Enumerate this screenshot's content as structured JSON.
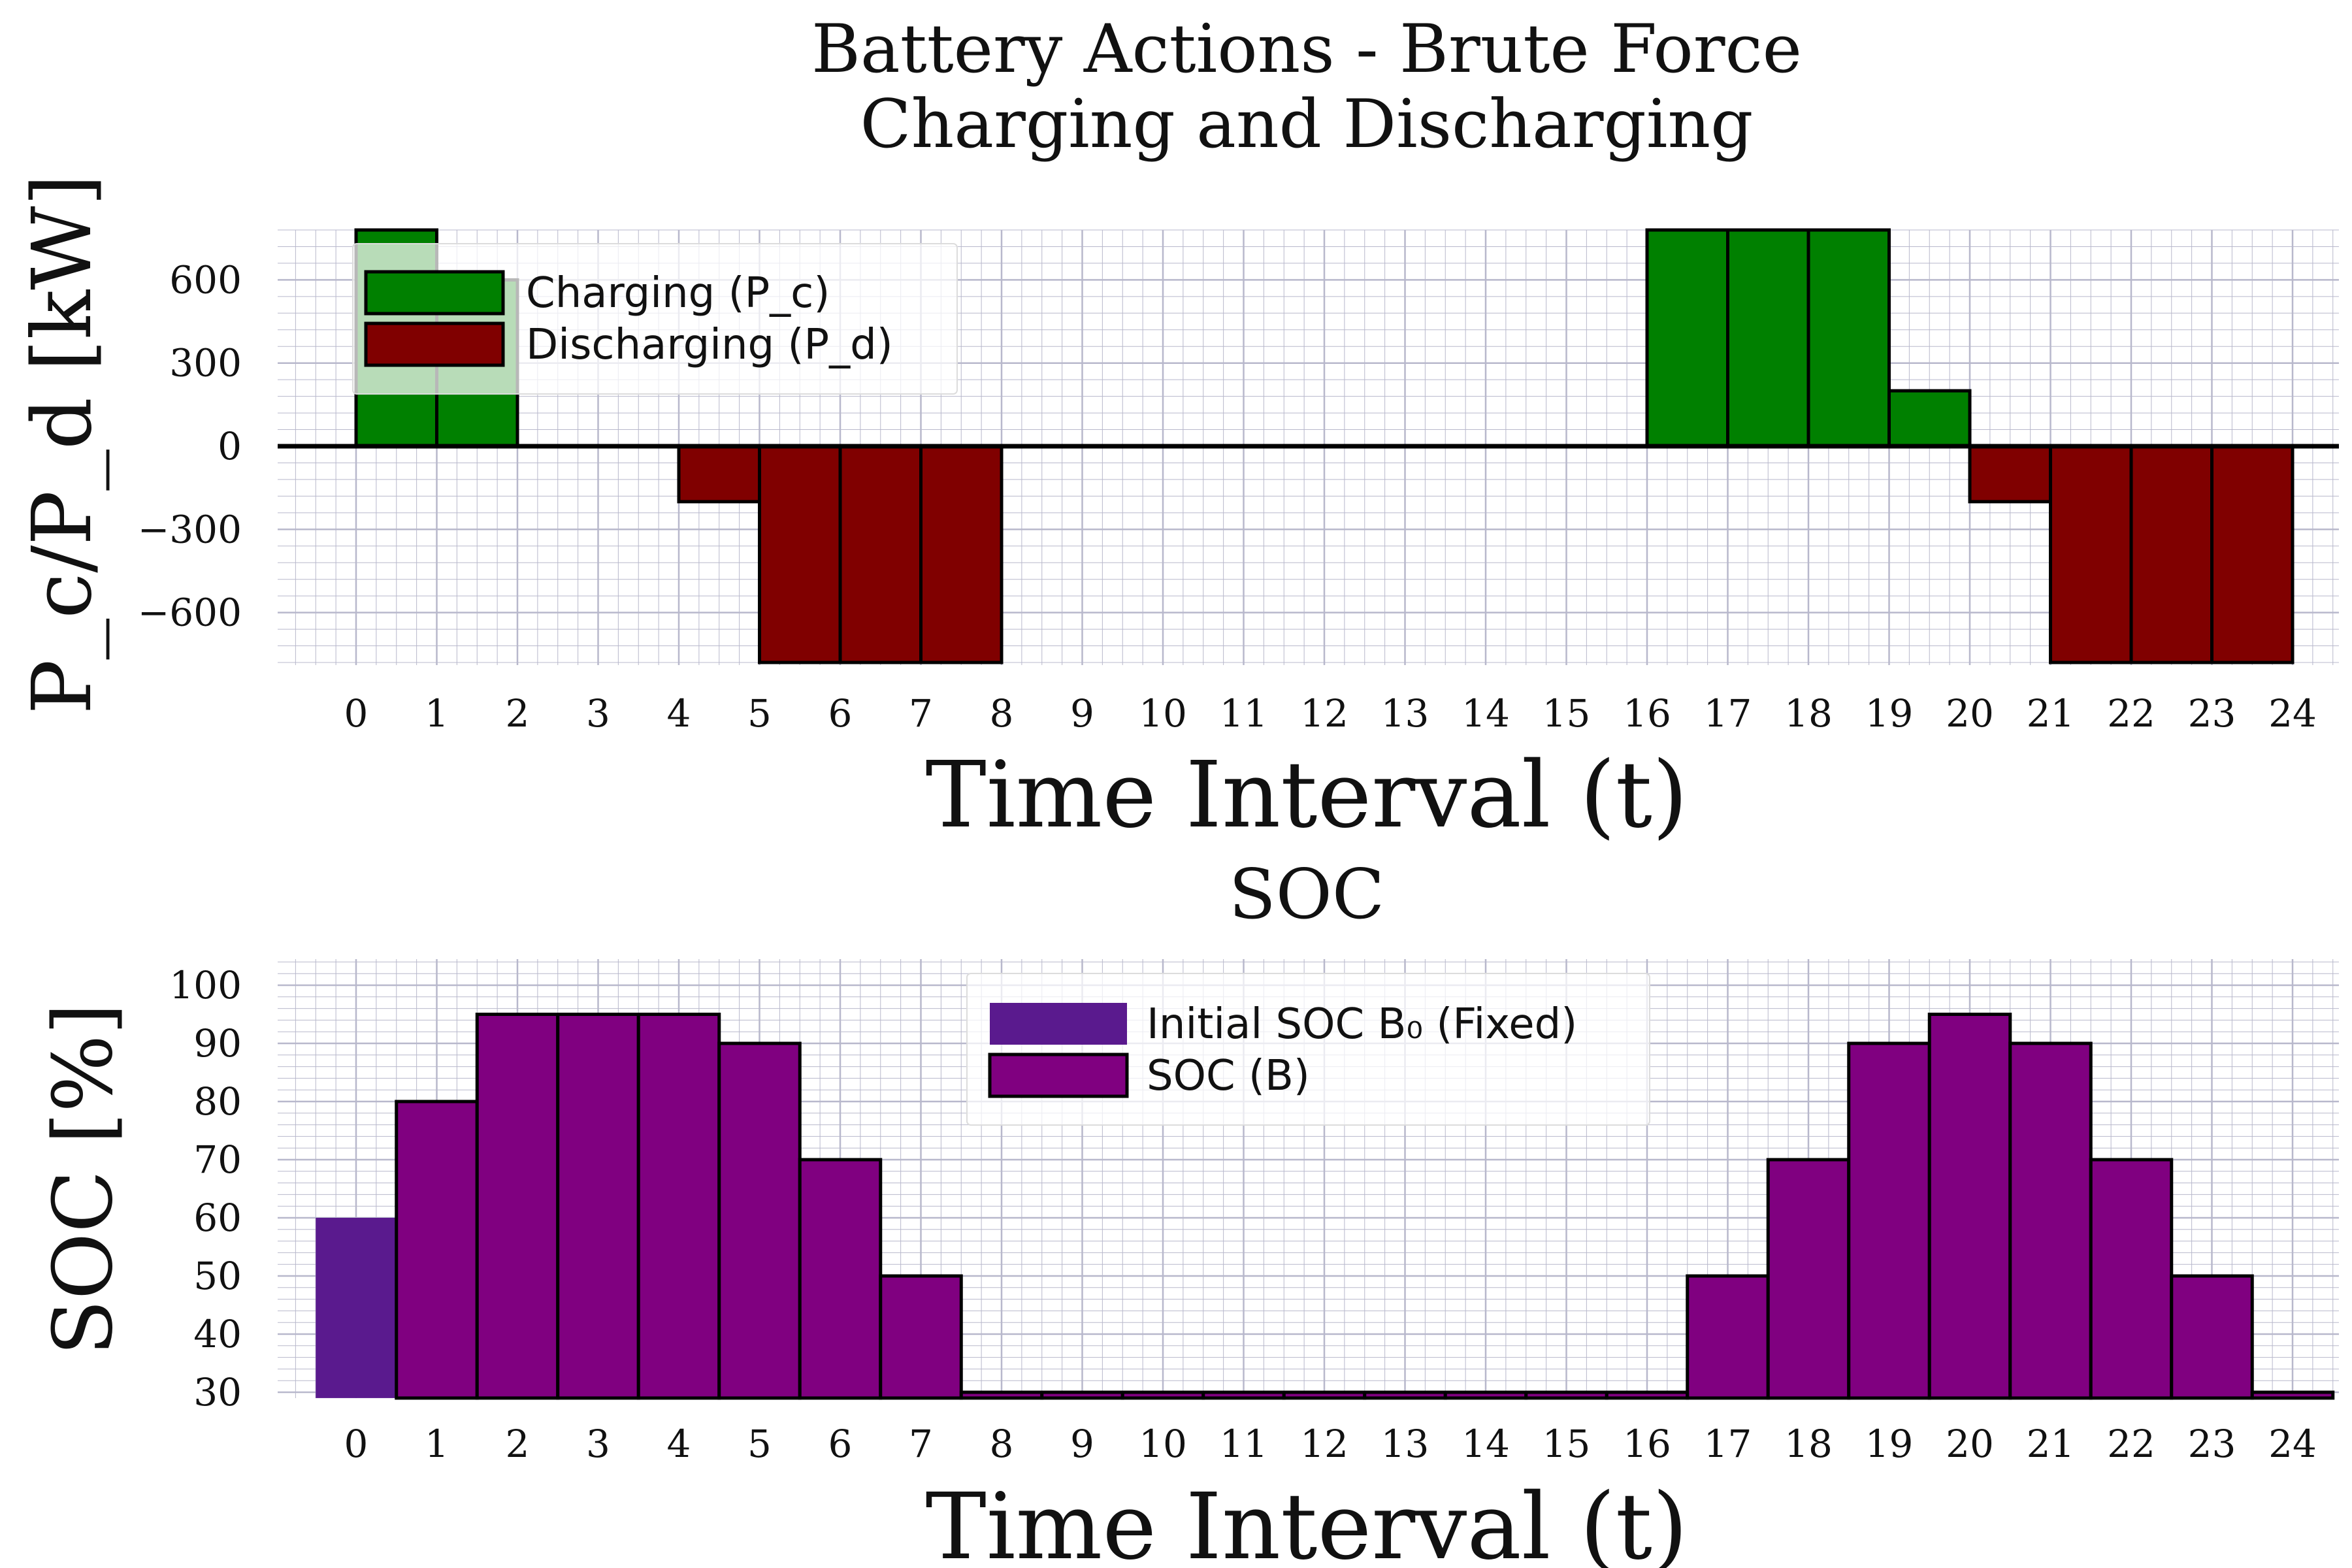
{
  "figure": {
    "title_line1": "Battery Actions - Brute Force",
    "title_line2": "Charging and Discharging"
  },
  "chart_data": [
    {
      "type": "bar",
      "title": "Charging and Discharging",
      "xlabel": "Time Interval (t)",
      "ylabel": "P_c/P_d [kW]",
      "x_ticks": [
        "0",
        "1",
        "2",
        "3",
        "4",
        "5",
        "6",
        "7",
        "8",
        "9",
        "10",
        "11",
        "12",
        "13",
        "14",
        "15",
        "16",
        "17",
        "18",
        "19",
        "20",
        "21",
        "22",
        "23",
        "24"
      ],
      "yticks": [
        -600,
        -300,
        0,
        300,
        600
      ],
      "ytick_labels": [
        "−600",
        "−300",
        "0",
        "300",
        "600"
      ],
      "ylim": [
        -780,
        780
      ],
      "grid": true,
      "legend_position": "top-left",
      "series": [
        {
          "name": "Charging (P_c)",
          "color": "#008000",
          "bars": [
            {
              "t_start": 0,
              "t_end": 1,
              "value": 780
            },
            {
              "t_start": 1,
              "t_end": 2,
              "value": 600
            },
            {
              "t_start": 16,
              "t_end": 17,
              "value": 780
            },
            {
              "t_start": 17,
              "t_end": 18,
              "value": 780
            },
            {
              "t_start": 18,
              "t_end": 19,
              "value": 780
            },
            {
              "t_start": 19,
              "t_end": 20,
              "value": 200
            }
          ]
        },
        {
          "name": "Discharging (P_d)",
          "color": "#800000",
          "bars": [
            {
              "t_start": 4,
              "t_end": 5,
              "value": -200
            },
            {
              "t_start": 5,
              "t_end": 6,
              "value": -780
            },
            {
              "t_start": 6,
              "t_end": 7,
              "value": -780
            },
            {
              "t_start": 7,
              "t_end": 8,
              "value": -780
            },
            {
              "t_start": 20,
              "t_end": 21,
              "value": -200
            },
            {
              "t_start": 21,
              "t_end": 22,
              "value": -780
            },
            {
              "t_start": 22,
              "t_end": 23,
              "value": -780
            },
            {
              "t_start": 23,
              "t_end": 24,
              "value": -780
            }
          ]
        }
      ]
    },
    {
      "type": "bar",
      "title": "SOC",
      "xlabel": "Time Interval (t)",
      "ylabel": "SOC [%]",
      "categories": [
        "0",
        "1",
        "2",
        "3",
        "4",
        "5",
        "6",
        "7",
        "8",
        "9",
        "10",
        "11",
        "12",
        "13",
        "14",
        "15",
        "16",
        "17",
        "18",
        "19",
        "20",
        "21",
        "22",
        "23",
        "24"
      ],
      "yticks": [
        30,
        40,
        50,
        60,
        70,
        80,
        90,
        100
      ],
      "ylim": [
        29,
        103
      ],
      "grid": true,
      "legend_position": "top-center",
      "series": [
        {
          "name": "Initial SOC B₀ (Fixed)",
          "color": "#5a1a8e",
          "values": [
            60,
            null,
            null,
            null,
            null,
            null,
            null,
            null,
            null,
            null,
            null,
            null,
            null,
            null,
            null,
            null,
            null,
            null,
            null,
            null,
            null,
            null,
            null,
            null,
            null
          ]
        },
        {
          "name": "SOC (B)",
          "color": "#800080",
          "values": [
            null,
            80,
            95,
            95,
            95,
            90,
            70,
            50,
            30,
            30,
            30,
            30,
            30,
            30,
            30,
            30,
            30,
            50,
            70,
            90,
            95,
            90,
            70,
            50,
            30
          ]
        }
      ]
    }
  ]
}
